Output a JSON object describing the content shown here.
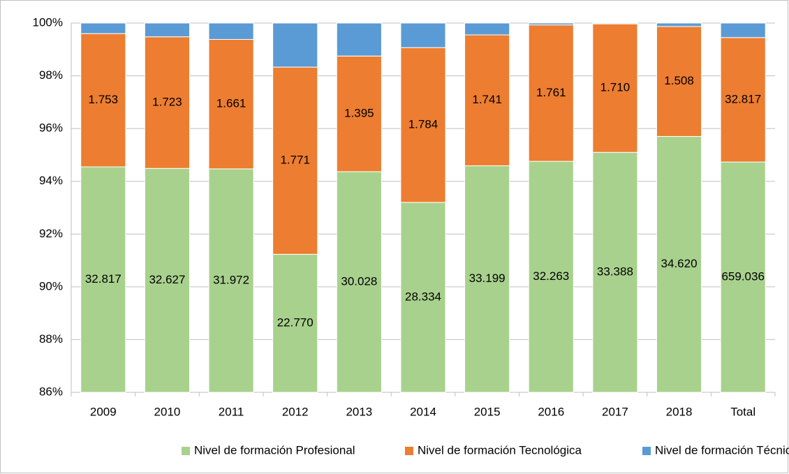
{
  "chart_data": {
    "type": "bar",
    "stacking": "percent",
    "categories": [
      "2009",
      "2010",
      "2011",
      "2012",
      "2013",
      "2014",
      "2015",
      "2016",
      "2017",
      "2018",
      "Total"
    ],
    "series": [
      {
        "name": "Nivel de formación Profesional",
        "color": "#a9d18e",
        "values": [
          32817,
          32627,
          31972,
          22770,
          30028,
          28334,
          33199,
          32263,
          33388,
          34620,
          659036
        ],
        "value_labels": [
          "32.817",
          "32.627",
          "31.972",
          "22.770",
          "30.028",
          "28.334",
          "33.199",
          "32.263",
          "33.388",
          "34.620",
          "659.036"
        ]
      },
      {
        "name": "Nivel de formación Tecnológica",
        "color": "#ed7d31",
        "values": [
          1753,
          1723,
          1661,
          1771,
          1395,
          1784,
          1741,
          1761,
          1710,
          1508,
          32817
        ],
        "value_labels": [
          "1.753",
          "1.723",
          "1.661",
          "1.771",
          "1.395",
          "1.784",
          "1.741",
          "1.761",
          "1.710",
          "1.508",
          "32.817"
        ]
      },
      {
        "name": "Nivel de formación Técnica",
        "color": "#5b9bd5",
        "values": [
          139,
          180,
          210,
          417,
          398,
          283,
          158,
          24,
          11,
          47,
          3826
        ]
      }
    ],
    "ylim": [
      86,
      100
    ],
    "yticks": [
      {
        "value": 86,
        "label": "86%"
      },
      {
        "value": 88,
        "label": "88%"
      },
      {
        "value": 90,
        "label": "90%"
      },
      {
        "value": 92,
        "label": "92%"
      },
      {
        "value": 94,
        "label": "94%"
      },
      {
        "value": 96,
        "label": "96%"
      },
      {
        "value": 98,
        "label": "98%"
      },
      {
        "value": 100,
        "label": "100%"
      }
    ],
    "grid": true,
    "legend": "bottom"
  }
}
